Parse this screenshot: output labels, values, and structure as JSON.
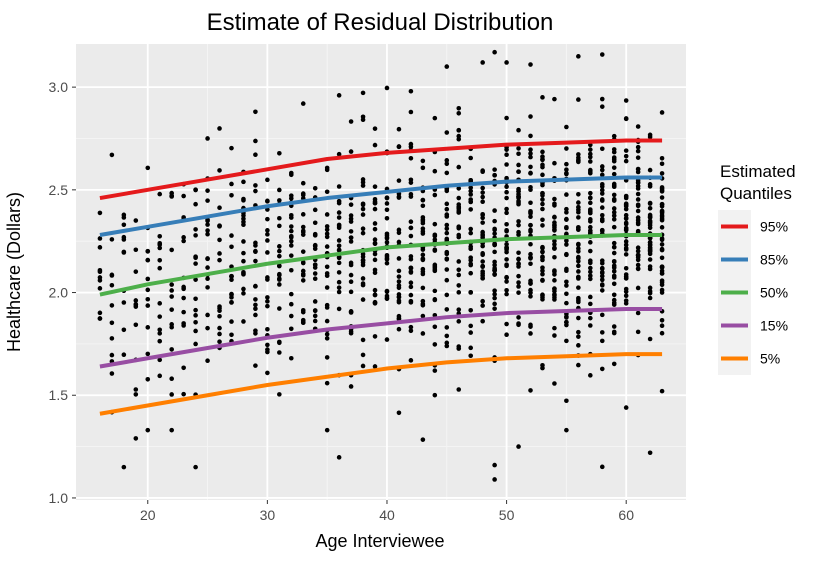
{
  "chart_data": {
    "type": "scatter",
    "title": "Estimate of Residual Distribution",
    "xlabel": "Age Interviewee",
    "ylabel": "Healthcare (Dollars)",
    "xlim": [
      14,
      65
    ],
    "ylim": [
      0.99,
      3.21
    ],
    "x_ticks": [
      20,
      30,
      40,
      50,
      60
    ],
    "y_ticks": [
      1.0,
      1.5,
      2.0,
      2.5,
      3.0
    ],
    "x_tick_labels": [
      "20",
      "30",
      "40",
      "50",
      "60"
    ],
    "y_tick_labels": [
      "1.0",
      "1.5",
      "2.0",
      "2.5",
      "3.0"
    ],
    "grid": true,
    "legend": {
      "title_lines": [
        "Estimated",
        "Quantiles"
      ],
      "position": "right"
    },
    "points": {
      "description_color": "#000000",
      "age_min": 16,
      "age_max": 63,
      "sample_points": [
        [
          16,
          2.22
        ],
        [
          17,
          2.67
        ],
        [
          18,
          1.15
        ],
        [
          24,
          1.15
        ],
        [
          49,
          1.09
        ],
        [
          49,
          1.16
        ],
        [
          56,
          3.15
        ],
        [
          48,
          3.12
        ],
        [
          50,
          3.12
        ],
        [
          52,
          3.11
        ],
        [
          45,
          3.1
        ],
        [
          33,
          2.92
        ],
        [
          36,
          2.96
        ],
        [
          42,
          2.98
        ],
        [
          51,
          1.25
        ],
        [
          62,
          1.22
        ],
        [
          29,
          2.88
        ],
        [
          25,
          2.75
        ],
        [
          60,
          1.44
        ],
        [
          63,
          1.52
        ],
        [
          20,
          1.33
        ],
        [
          22,
          1.33
        ],
        [
          35,
          1.33
        ],
        [
          55,
          1.33
        ]
      ]
    },
    "series": [
      {
        "name": "95%",
        "color": "#E41A1C",
        "x": [
          16,
          20,
          25,
          30,
          35,
          40,
          45,
          50,
          55,
          60,
          63
        ],
        "values": [
          2.46,
          2.5,
          2.55,
          2.6,
          2.65,
          2.68,
          2.7,
          2.72,
          2.73,
          2.74,
          2.74
        ]
      },
      {
        "name": "85%",
        "color": "#377EB8",
        "x": [
          16,
          20,
          25,
          30,
          35,
          40,
          45,
          50,
          55,
          60,
          63
        ],
        "values": [
          2.28,
          2.32,
          2.37,
          2.42,
          2.46,
          2.49,
          2.52,
          2.54,
          2.55,
          2.56,
          2.56
        ]
      },
      {
        "name": "50%",
        "color": "#4DAF4A",
        "x": [
          16,
          20,
          25,
          30,
          35,
          40,
          45,
          50,
          55,
          60,
          63
        ],
        "values": [
          1.99,
          2.04,
          2.09,
          2.14,
          2.18,
          2.22,
          2.24,
          2.26,
          2.27,
          2.28,
          2.28
        ]
      },
      {
        "name": "15%",
        "color": "#984EA3",
        "x": [
          16,
          20,
          25,
          30,
          35,
          40,
          45,
          50,
          55,
          60,
          63
        ],
        "values": [
          1.64,
          1.68,
          1.73,
          1.78,
          1.82,
          1.85,
          1.88,
          1.9,
          1.91,
          1.92,
          1.92
        ]
      },
      {
        "name": "5%",
        "color": "#FF7F00",
        "x": [
          16,
          20,
          25,
          30,
          35,
          40,
          45,
          50,
          55,
          60,
          63
        ],
        "values": [
          1.41,
          1.45,
          1.5,
          1.55,
          1.59,
          1.63,
          1.66,
          1.68,
          1.69,
          1.7,
          1.7
        ]
      }
    ]
  }
}
